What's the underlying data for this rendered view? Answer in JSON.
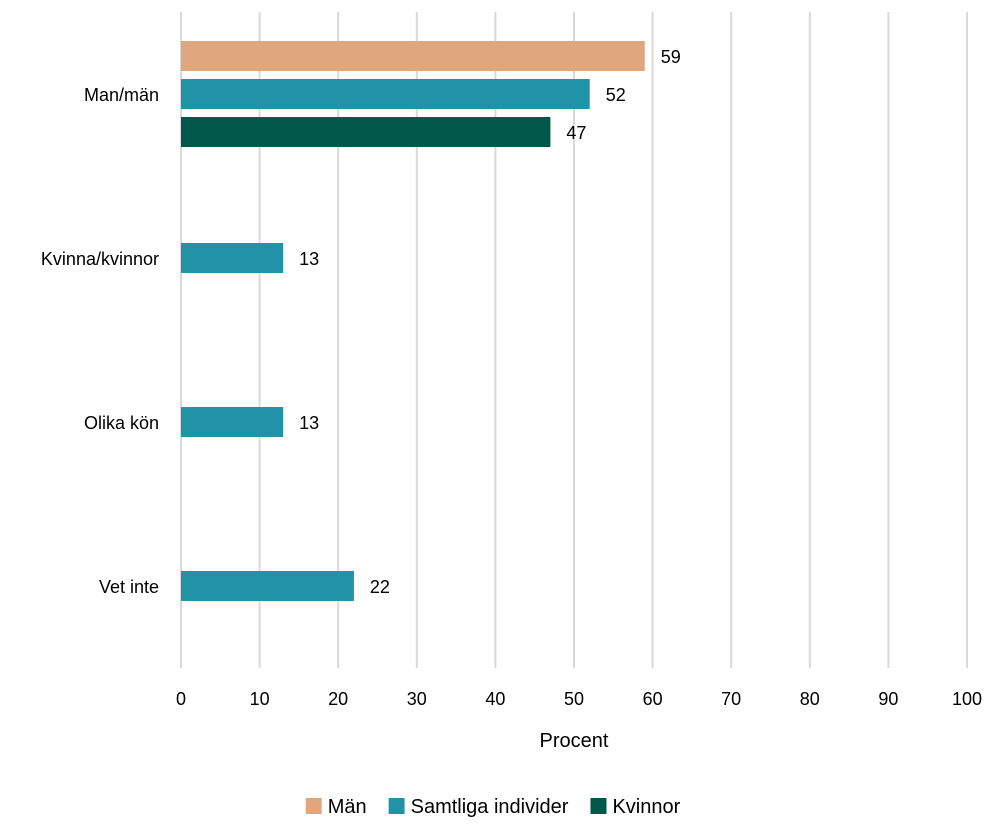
{
  "chart_data": {
    "type": "bar",
    "orientation": "horizontal",
    "categories": [
      "Man/män",
      "Kvinna/kvinnor",
      "Olika kön",
      "Vet inte"
    ],
    "series": [
      {
        "name": "Män",
        "color": "#E0A67E",
        "values": [
          59,
          null,
          null,
          null
        ]
      },
      {
        "name": "Samtliga individer",
        "color": "#2292A8",
        "values": [
          52,
          13,
          13,
          22
        ]
      },
      {
        "name": "Kvinnor",
        "color": "#00574A",
        "values": [
          47,
          null,
          null,
          null
        ]
      }
    ],
    "xlabel": "Procent",
    "ylabel": "",
    "xlim": [
      0,
      100
    ],
    "xticks": [
      "0",
      "10",
      "20",
      "30",
      "40",
      "50",
      "60",
      "70",
      "80",
      "90",
      "100"
    ],
    "grid": true,
    "legend_position": "bottom"
  }
}
